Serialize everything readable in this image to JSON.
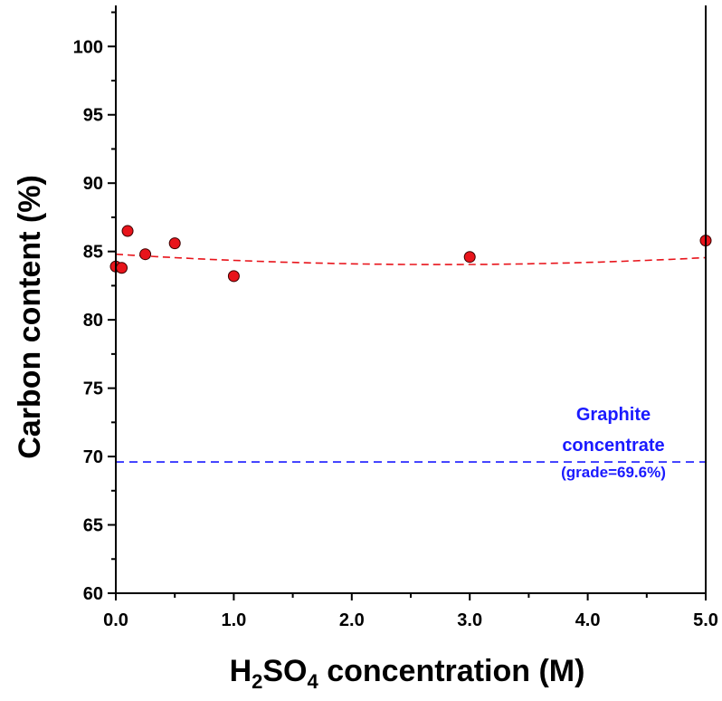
{
  "chart_data": {
    "type": "scatter",
    "title": "",
    "xlabel": {
      "parts": [
        "H",
        "2",
        "SO",
        "4",
        " concentration (M)"
      ],
      "text": "H2SO4 concentration (M)"
    },
    "ylabel": "Carbon content (%)",
    "xlim": [
      0,
      5
    ],
    "ylim": [
      60,
      103
    ],
    "x_ticks": [
      0,
      1,
      2,
      3,
      4,
      5
    ],
    "x_tick_labels": [
      "0.0",
      "1.0",
      "2.0",
      "3.0",
      "4.0",
      "5.0"
    ],
    "y_ticks": [
      60,
      65,
      70,
      75,
      80,
      85,
      90,
      95,
      100
    ],
    "y_tick_labels": [
      "60",
      "65",
      "70",
      "75",
      "80",
      "85",
      "90",
      "95",
      "100"
    ],
    "grid": false,
    "series": [
      {
        "x": [
          0.0,
          0.05,
          0.1,
          0.25,
          0.5,
          1.0,
          3.0,
          5.0
        ],
        "y": [
          83.9,
          83.8,
          86.5,
          84.8,
          85.6,
          83.2,
          84.6,
          85.8
        ],
        "color": "#e8141b",
        "marker": "circle"
      }
    ],
    "trend_line": {
      "type": "quadratic",
      "coefficients": [
        84.8,
        -0.55,
        0.1
      ],
      "color": "#e8141b",
      "style": "dashed"
    },
    "reference_line": {
      "y": 69.6,
      "color": "#1a1aff",
      "style": "dashed"
    },
    "annotation": {
      "lines": [
        "Graphite",
        "concentrate",
        "(grade=69.6%)"
      ],
      "color": "#1a1aff"
    }
  }
}
